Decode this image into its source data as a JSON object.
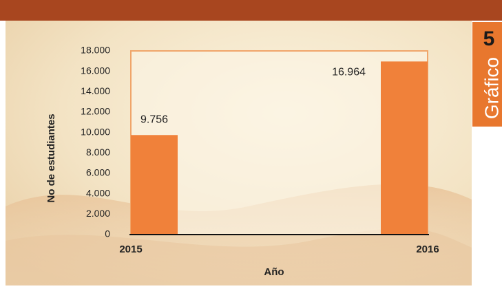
{
  "badge": {
    "number": "5",
    "label": "Gráfico"
  },
  "chart_data": {
    "type": "bar",
    "x_label": "Año",
    "y_label": "No de estudiantes",
    "categories": [
      "2015",
      "2016"
    ],
    "values": [
      9756,
      16964
    ],
    "value_labels": [
      "9.756",
      "16.964"
    ],
    "color": "#f0813a",
    "ylim": [
      0,
      18000
    ],
    "yticks": [
      0,
      {
        "value": 2000,
        "label": "2.000"
      },
      {
        "value": 4000,
        "label": "4.000"
      },
      {
        "value": 6000,
        "label": "6.000"
      },
      {
        "value": 8000,
        "label": "8.000"
      },
      {
        "value": 10000,
        "label": "10.000"
      },
      {
        "value": 12000,
        "label": "12.000"
      },
      {
        "value": 14000,
        "label": "14.000"
      },
      {
        "value": 16000,
        "label": "16.000"
      },
      {
        "value": 18000,
        "label": "18.000"
      }
    ],
    "grid": false
  }
}
